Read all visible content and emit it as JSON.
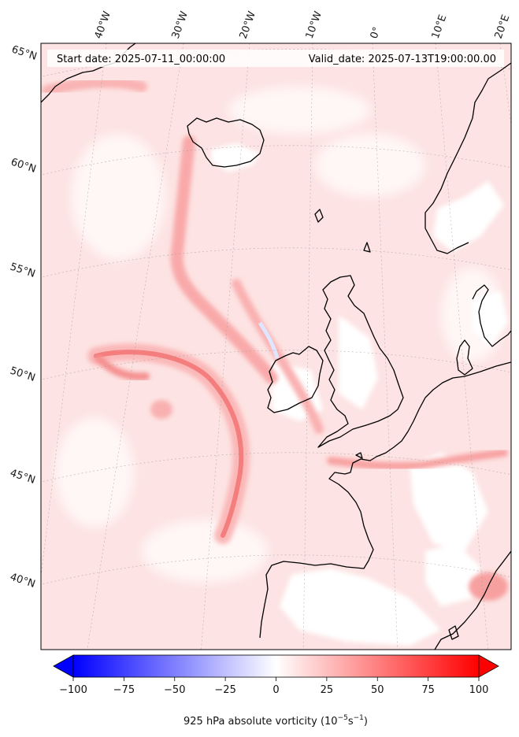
{
  "header": {
    "start_text": "Start date: 2025-07-11_00:00:00",
    "valid_text": "Valid_date: 2025-07-13T19:00:00.00"
  },
  "longitude_labels": [
    "40°W",
    "30°W",
    "20°W",
    "10°W",
    "0°",
    "10°E",
    "20°E"
  ],
  "latitude_labels": [
    "65°N",
    "60°N",
    "55°N",
    "50°N",
    "45°N",
    "40°N"
  ],
  "colorbar": {
    "ticks": [
      "−100",
      "−75",
      "−50",
      "−25",
      "0",
      "25",
      "50",
      "75",
      "100"
    ],
    "tick_values": [
      -100,
      -75,
      -50,
      -25,
      0,
      25,
      50,
      75,
      100
    ],
    "range": [
      -100,
      100
    ],
    "label_main": "925 hPa absolute vorticity (10",
    "label_exp1": "−5",
    "label_mid": "s",
    "label_exp2": "−1",
    "label_end": ")",
    "colormap": "bwr",
    "colors": {
      "low": "#0000ff",
      "mid": "#ffffff",
      "high": "#ff0000"
    }
  }
}
